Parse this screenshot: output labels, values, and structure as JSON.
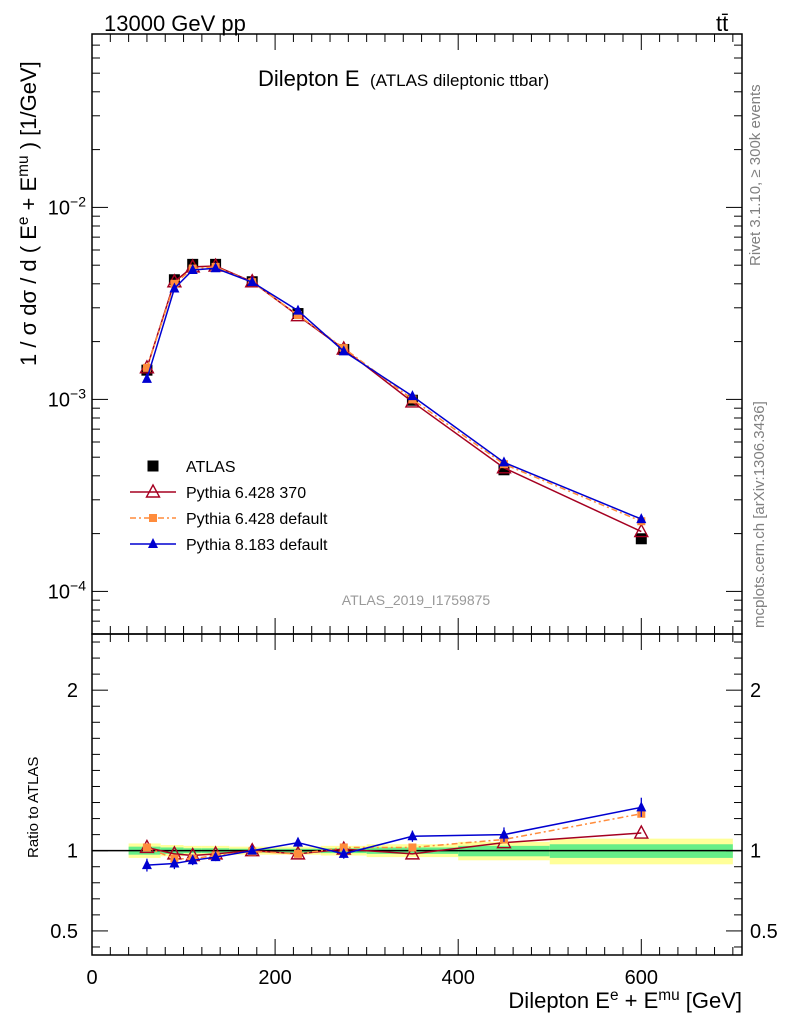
{
  "header": {
    "left": "13000 GeV pp",
    "right": "tt̄"
  },
  "side_labels": {
    "rivet": "Rivet 3.1.10, ≥ 300k events",
    "mcplots": "mcplots.cern.ch [arXiv:1306.3436]"
  },
  "chart_data": [
    {
      "type": "line",
      "title": "Dilepton E",
      "subtitle": "(ATLAS dileptonic ttbar)",
      "analysis_tag": "ATLAS_2019_I1759875",
      "ylabel": "1 / σ dσ / d ( E^e + E^mu ) [1/GeV]",
      "yscale": "log",
      "xlim": [
        0,
        710
      ],
      "ylim": [
        6e-05,
        0.08
      ],
      "y_ticks": [
        {
          "value": 0.01,
          "base": "10",
          "exp": "−2"
        },
        {
          "value": 0.001,
          "base": "10",
          "exp": "−3"
        },
        {
          "value": 0.0001,
          "base": "10",
          "exp": "−4"
        }
      ],
      "legend_position": "middle-left",
      "series": [
        {
          "name": "ATLAS",
          "color": "#000000",
          "marker": "square-filled",
          "x": [
            60,
            90,
            110,
            135,
            175,
            225,
            275,
            350,
            450,
            600
          ],
          "values": [
            0.00142,
            0.0042,
            0.00505,
            0.00505,
            0.0041,
            0.0028,
            0.00182,
            0.00099,
            0.00043,
            0.000188
          ]
        },
        {
          "name": "Pythia 6.428 370",
          "color": "#a50021",
          "marker": "triangle-open",
          "x": [
            60,
            90,
            110,
            135,
            175,
            225,
            275,
            350,
            450,
            600
          ],
          "values": [
            0.00146,
            0.0041,
            0.0049,
            0.00495,
            0.0041,
            0.00273,
            0.00183,
            0.00097,
            0.00044,
            0.000205
          ]
        },
        {
          "name": "Pythia 6.428 default",
          "color": "#ff8c3c",
          "marker": "square-filled-small",
          "dash": true,
          "x": [
            60,
            90,
            110,
            135,
            175,
            225,
            275,
            350,
            450,
            600
          ],
          "values": [
            0.00146,
            0.004,
            0.0048,
            0.0049,
            0.00408,
            0.00275,
            0.00185,
            0.001,
            0.00046,
            0.000232
          ]
        },
        {
          "name": "Pythia 8.183 default",
          "color": "#0000d0",
          "marker": "triangle-filled",
          "x": [
            60,
            90,
            110,
            135,
            175,
            225,
            275,
            350,
            450,
            600
          ],
          "values": [
            0.00128,
            0.00378,
            0.00472,
            0.00482,
            0.00408,
            0.0029,
            0.00178,
            0.00104,
            0.00047,
            0.000238
          ],
          "errors": [
            5e-05,
            0.0001,
            0.0001,
            0.0001,
            8e-05,
            6e-05,
            4e-05,
            3e-05,
            2e-05,
            1e-05
          ]
        }
      ]
    },
    {
      "type": "line",
      "ylabel": "Ratio to ATLAS",
      "xlabel": "Dilepton E^e + E^mu [GeV]",
      "xlim": [
        0,
        710
      ],
      "ylim": [
        0.35,
        2.35
      ],
      "y_ticks": [
        0.5,
        1,
        2
      ],
      "y_tick_labels": [
        "0.5",
        "1",
        "2"
      ],
      "x_ticks": [
        0,
        200,
        400,
        600
      ],
      "x_tick_labels": [
        "0",
        "200",
        "400",
        "600"
      ],
      "bands": [
        {
          "x0": 40,
          "x1": 75,
          "lo_inner": 0.975,
          "hi_inner": 1.025,
          "lo_outer": 0.955,
          "hi_outer": 1.045
        },
        {
          "x0": 75,
          "x1": 100,
          "lo_inner": 0.98,
          "hi_inner": 1.02,
          "lo_outer": 0.965,
          "hi_outer": 1.035
        },
        {
          "x0": 100,
          "x1": 120,
          "lo_inner": 0.985,
          "hi_inner": 1.015,
          "lo_outer": 0.97,
          "hi_outer": 1.03
        },
        {
          "x0": 120,
          "x1": 150,
          "lo_inner": 0.985,
          "hi_inner": 1.015,
          "lo_outer": 0.97,
          "hi_outer": 1.03
        },
        {
          "x0": 150,
          "x1": 200,
          "lo_inner": 0.988,
          "hi_inner": 1.012,
          "lo_outer": 0.975,
          "hi_outer": 1.025
        },
        {
          "x0": 200,
          "x1": 250,
          "lo_inner": 0.988,
          "hi_inner": 1.012,
          "lo_outer": 0.975,
          "hi_outer": 1.025
        },
        {
          "x0": 250,
          "x1": 300,
          "lo_inner": 0.985,
          "hi_inner": 1.015,
          "lo_outer": 0.97,
          "hi_outer": 1.03
        },
        {
          "x0": 300,
          "x1": 400,
          "lo_inner": 0.98,
          "hi_inner": 1.02,
          "lo_outer": 0.96,
          "hi_outer": 1.04
        },
        {
          "x0": 400,
          "x1": 500,
          "lo_inner": 0.965,
          "hi_inner": 1.03,
          "lo_outer": 0.94,
          "hi_outer": 1.055
        },
        {
          "x0": 500,
          "x1": 700,
          "lo_inner": 0.955,
          "hi_inner": 1.04,
          "lo_outer": 0.915,
          "hi_outer": 1.075
        }
      ],
      "series": [
        {
          "name": "Pythia 6.428 370",
          "color": "#a50021",
          "marker": "triangle-open",
          "x": [
            60,
            90,
            110,
            135,
            175,
            225,
            275,
            350,
            450,
            600
          ],
          "values": [
            1.02,
            0.98,
            0.97,
            0.98,
            1.0,
            0.98,
            1.01,
            0.98,
            1.05,
            1.11
          ]
        },
        {
          "name": "Pythia 6.428 default",
          "color": "#ff8c3c",
          "marker": "square-filled-small",
          "dash": true,
          "x": [
            60,
            90,
            110,
            135,
            175,
            225,
            275,
            350,
            450,
            600
          ],
          "values": [
            1.02,
            0.95,
            0.95,
            0.97,
            0.995,
            0.98,
            1.02,
            1.02,
            1.07,
            1.23
          ]
        },
        {
          "name": "Pythia 8.183 default",
          "color": "#0000d0",
          "marker": "triangle-filled",
          "x": [
            60,
            90,
            110,
            135,
            175,
            225,
            275,
            350,
            450,
            600
          ],
          "values": [
            0.91,
            0.92,
            0.94,
            0.96,
            1.0,
            1.05,
            0.98,
            1.09,
            1.1,
            1.27
          ],
          "errors": [
            0.04,
            0.035,
            0.03,
            0.025,
            0.02,
            0.025,
            0.03,
            0.035,
            0.045,
            0.06
          ]
        }
      ]
    }
  ]
}
